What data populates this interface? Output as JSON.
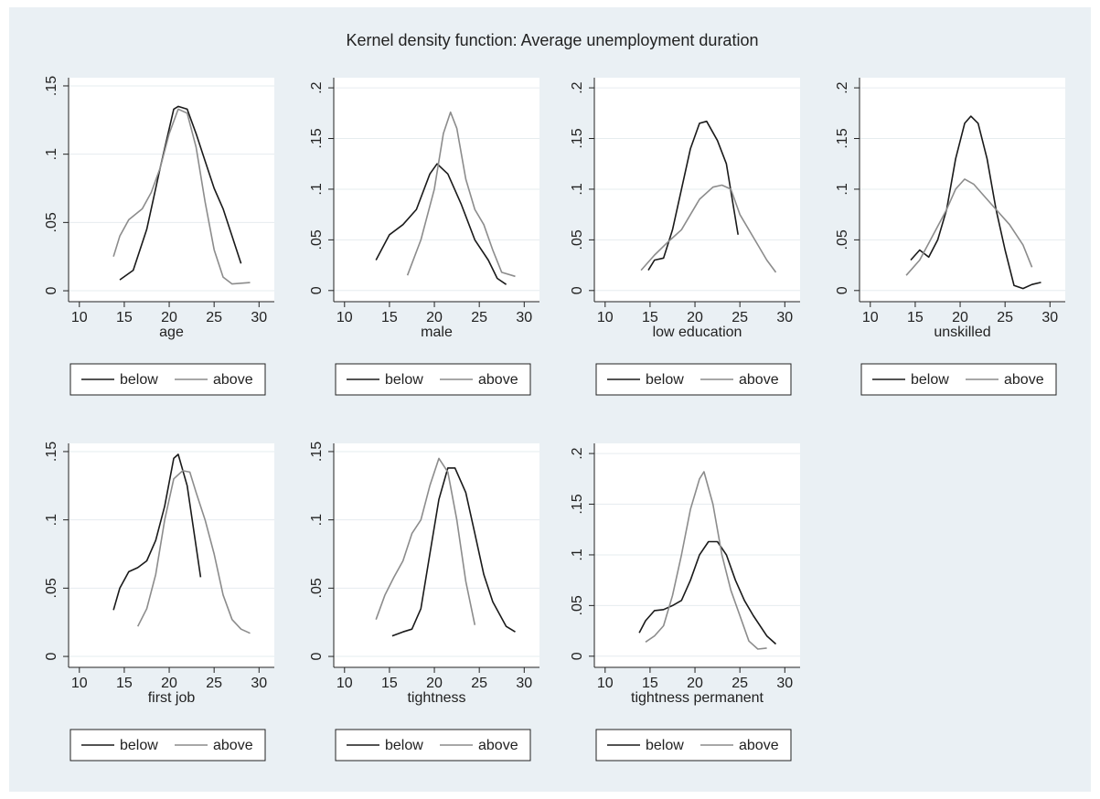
{
  "title": "Kernel density function: Average unemployment duration",
  "chart_data": [
    {
      "type": "line",
      "xlabel": "age",
      "xlim": [
        8.8,
        31.7
      ],
      "xticks": [
        10,
        15,
        20,
        25,
        30
      ],
      "ylim": [
        -0.008,
        0.156
      ],
      "yticks": [
        0,
        {
          "value": 0.05,
          "label": ".05"
        },
        {
          "value": 0.1,
          "label": ".1"
        },
        {
          "value": 0.15,
          "label": ".15"
        }
      ],
      "grid": true,
      "series": [
        {
          "name": "below",
          "color": "#1a1a1a",
          "x": [
            14.5,
            16,
            17.5,
            19,
            20.5,
            21,
            22,
            23,
            24,
            25,
            26,
            27,
            28
          ],
          "values": [
            0.008,
            0.015,
            0.045,
            0.09,
            0.133,
            0.135,
            0.133,
            0.115,
            0.095,
            0.075,
            0.06,
            0.04,
            0.02
          ]
        },
        {
          "name": "above",
          "color": "#8c8c8c",
          "x": [
            13.8,
            14.5,
            15.5,
            17,
            18,
            19,
            20,
            21,
            22,
            23,
            24,
            25,
            26,
            27,
            29
          ],
          "values": [
            0.025,
            0.04,
            0.052,
            0.06,
            0.072,
            0.09,
            0.115,
            0.133,
            0.13,
            0.105,
            0.065,
            0.03,
            0.01,
            0.005,
            0.006
          ]
        }
      ]
    },
    {
      "type": "line",
      "xlabel": "male",
      "xlim": [
        8.8,
        31.7
      ],
      "xticks": [
        10,
        15,
        20,
        25,
        30
      ],
      "ylim": [
        -0.011,
        0.21
      ],
      "yticks": [
        0,
        {
          "value": 0.05,
          "label": ".05"
        },
        {
          "value": 0.1,
          "label": ".1"
        },
        {
          "value": 0.15,
          "label": ".15"
        },
        {
          "value": 0.2,
          "label": ".2"
        }
      ],
      "grid": true,
      "series": [
        {
          "name": "below",
          "color": "#1a1a1a",
          "x": [
            13.5,
            15,
            16.5,
            18,
            19.5,
            20.3,
            21.5,
            23,
            24.5,
            26,
            27,
            28
          ],
          "values": [
            0.03,
            0.055,
            0.065,
            0.08,
            0.115,
            0.125,
            0.115,
            0.085,
            0.05,
            0.03,
            0.012,
            0.006
          ]
        },
        {
          "name": "above",
          "color": "#8c8c8c",
          "x": [
            17,
            18.5,
            20,
            21,
            21.8,
            22.5,
            23.5,
            24.5,
            25.5,
            26.5,
            27.5,
            29
          ],
          "values": [
            0.015,
            0.05,
            0.1,
            0.155,
            0.176,
            0.16,
            0.11,
            0.08,
            0.065,
            0.04,
            0.018,
            0.014
          ]
        }
      ]
    },
    {
      "type": "line",
      "xlabel": "low education",
      "xlim": [
        8.8,
        31.7
      ],
      "xticks": [
        10,
        15,
        20,
        25,
        30
      ],
      "ylim": [
        -0.011,
        0.21
      ],
      "yticks": [
        0,
        {
          "value": 0.05,
          "label": ".05"
        },
        {
          "value": 0.1,
          "label": ".1"
        },
        {
          "value": 0.15,
          "label": ".15"
        },
        {
          "value": 0.2,
          "label": ".2"
        }
      ],
      "grid": true,
      "series": [
        {
          "name": "below",
          "color": "#1a1a1a",
          "x": [
            14.8,
            15.5,
            16.5,
            17.5,
            18.5,
            19.5,
            20.5,
            21.3,
            22.5,
            23.5,
            24.8
          ],
          "values": [
            0.02,
            0.03,
            0.032,
            0.06,
            0.1,
            0.14,
            0.165,
            0.167,
            0.148,
            0.125,
            0.055
          ]
        },
        {
          "name": "above",
          "color": "#8c8c8c",
          "x": [
            14,
            15.5,
            17,
            18.5,
            19.5,
            20.5,
            22,
            23,
            24,
            25,
            26,
            27,
            28,
            29
          ],
          "values": [
            0.02,
            0.035,
            0.048,
            0.06,
            0.075,
            0.09,
            0.102,
            0.104,
            0.1,
            0.075,
            0.06,
            0.045,
            0.03,
            0.018
          ]
        }
      ]
    },
    {
      "type": "line",
      "xlabel": "unskilled",
      "xlim": [
        8.8,
        31.7
      ],
      "xticks": [
        10,
        15,
        20,
        25,
        30
      ],
      "ylim": [
        -0.011,
        0.21
      ],
      "yticks": [
        0,
        {
          "value": 0.05,
          "label": ".05"
        },
        {
          "value": 0.1,
          "label": ".1"
        },
        {
          "value": 0.15,
          "label": ".15"
        },
        {
          "value": 0.2,
          "label": ".2"
        }
      ],
      "grid": true,
      "series": [
        {
          "name": "below",
          "color": "#1a1a1a",
          "x": [
            14.5,
            15.5,
            16.5,
            17.5,
            18.5,
            19.5,
            20.5,
            21.2,
            22,
            23,
            24,
            25,
            26,
            27,
            28,
            29
          ],
          "values": [
            0.03,
            0.04,
            0.033,
            0.05,
            0.08,
            0.13,
            0.165,
            0.172,
            0.165,
            0.13,
            0.08,
            0.04,
            0.005,
            0.002,
            0.006,
            0.008
          ]
        },
        {
          "name": "above",
          "color": "#8c8c8c",
          "x": [
            14,
            15.5,
            17,
            18.5,
            19.5,
            20.5,
            21.5,
            22.5,
            24,
            25.5,
            27,
            28
          ],
          "values": [
            0.015,
            0.03,
            0.055,
            0.08,
            0.1,
            0.11,
            0.105,
            0.095,
            0.08,
            0.065,
            0.045,
            0.023
          ]
        }
      ]
    },
    {
      "type": "line",
      "xlabel": "first job",
      "xlim": [
        8.8,
        31.7
      ],
      "xticks": [
        10,
        15,
        20,
        25,
        30
      ],
      "ylim": [
        -0.008,
        0.156
      ],
      "yticks": [
        0,
        {
          "value": 0.05,
          "label": ".05"
        },
        {
          "value": 0.1,
          "label": ".1"
        },
        {
          "value": 0.15,
          "label": ".15"
        }
      ],
      "grid": true,
      "series": [
        {
          "name": "below",
          "color": "#1a1a1a",
          "x": [
            13.8,
            14.5,
            15.5,
            16.5,
            17.5,
            18.5,
            19.5,
            20.5,
            21,
            22,
            23.5
          ],
          "values": [
            0.034,
            0.05,
            0.062,
            0.065,
            0.07,
            0.085,
            0.11,
            0.145,
            0.148,
            0.125,
            0.058
          ]
        },
        {
          "name": "above",
          "color": "#8c8c8c",
          "x": [
            16.5,
            17.5,
            18.5,
            19.5,
            20.5,
            21.5,
            22.3,
            23,
            24,
            25,
            26,
            27,
            28,
            29
          ],
          "values": [
            0.022,
            0.035,
            0.06,
            0.1,
            0.13,
            0.136,
            0.135,
            0.12,
            0.1,
            0.075,
            0.045,
            0.027,
            0.02,
            0.017
          ]
        }
      ]
    },
    {
      "type": "line",
      "xlabel": "tightness",
      "xlim": [
        8.8,
        31.7
      ],
      "xticks": [
        10,
        15,
        20,
        25,
        30
      ],
      "ylim": [
        -0.008,
        0.156
      ],
      "yticks": [
        0,
        {
          "value": 0.05,
          "label": ".05"
        },
        {
          "value": 0.1,
          "label": ".1"
        },
        {
          "value": 0.15,
          "label": ".15"
        }
      ],
      "grid": true,
      "series": [
        {
          "name": "below",
          "color": "#1a1a1a",
          "x": [
            15.3,
            16.5,
            17.5,
            18.5,
            19.5,
            20.5,
            21.5,
            22.3,
            23.5,
            24.5,
            25.5,
            26.5,
            28,
            29
          ],
          "values": [
            0.015,
            0.018,
            0.02,
            0.035,
            0.075,
            0.115,
            0.138,
            0.138,
            0.12,
            0.09,
            0.06,
            0.04,
            0.022,
            0.018
          ]
        },
        {
          "name": "above",
          "color": "#8c8c8c",
          "x": [
            13.5,
            14.5,
            15.5,
            16.5,
            17.5,
            18.5,
            19.5,
            20.5,
            21.5,
            22.5,
            23.5,
            24.5
          ],
          "values": [
            0.027,
            0.045,
            0.058,
            0.07,
            0.09,
            0.1,
            0.125,
            0.145,
            0.135,
            0.1,
            0.055,
            0.023
          ]
        }
      ]
    },
    {
      "type": "line",
      "xlabel": "tightness permanent",
      "xlim": [
        8.8,
        31.7
      ],
      "xticks": [
        10,
        15,
        20,
        25,
        30
      ],
      "ylim": [
        -0.011,
        0.21
      ],
      "yticks": [
        0,
        {
          "value": 0.05,
          "label": ".05"
        },
        {
          "value": 0.1,
          "label": ".1"
        },
        {
          "value": 0.15,
          "label": ".15"
        },
        {
          "value": 0.2,
          "label": ".2"
        }
      ],
      "grid": true,
      "series": [
        {
          "name": "below",
          "color": "#1a1a1a",
          "x": [
            13.8,
            14.5,
            15.5,
            16.5,
            17.5,
            18.5,
            19.5,
            20.5,
            21.5,
            22.5,
            23.5,
            24.5,
            25.5,
            26.5,
            28,
            29
          ],
          "values": [
            0.023,
            0.035,
            0.045,
            0.046,
            0.05,
            0.055,
            0.075,
            0.1,
            0.113,
            0.113,
            0.1,
            0.075,
            0.055,
            0.04,
            0.02,
            0.012
          ]
        },
        {
          "name": "above",
          "color": "#8c8c8c",
          "x": [
            14.5,
            15.5,
            16.5,
            17.5,
            18.5,
            19.5,
            20.5,
            21,
            22,
            23,
            24,
            25,
            26,
            27,
            28
          ],
          "values": [
            0.014,
            0.02,
            0.03,
            0.06,
            0.1,
            0.145,
            0.175,
            0.182,
            0.15,
            0.1,
            0.065,
            0.04,
            0.015,
            0.007,
            0.008
          ]
        }
      ]
    }
  ]
}
